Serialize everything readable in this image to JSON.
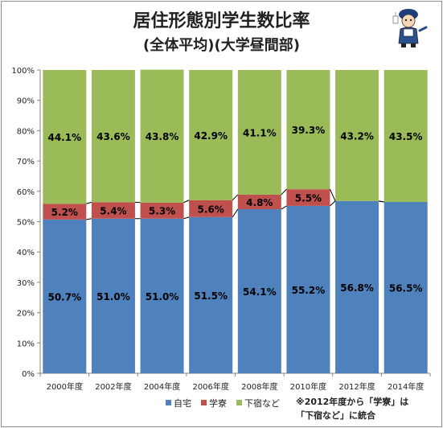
{
  "chart_data": {
    "type": "bar",
    "stacked": true,
    "title": "居住形態別学生数比率",
    "subtitle": "(全体平均)(大学昼間部)",
    "categories": [
      "2000年度",
      "2002年度",
      "2004年度",
      "2006年度",
      "2008年度",
      "2010年度",
      "2012年度",
      "2014年度"
    ],
    "series": [
      {
        "name": "自宅",
        "color": "#4f81bd",
        "values": [
          50.7,
          51.0,
          51.0,
          51.5,
          54.1,
          55.2,
          56.8,
          56.5
        ],
        "labels": [
          "50.7%",
          "51.0%",
          "51.0%",
          "51.5%",
          "54.1%",
          "55.2%",
          "56.8%",
          "56.5%"
        ]
      },
      {
        "name": "学寮",
        "color": "#c0504d",
        "values": [
          5.2,
          5.4,
          5.3,
          5.6,
          4.8,
          5.5,
          0,
          0
        ],
        "labels": [
          "5.2%",
          "5.4%",
          "5.3%",
          "5.6%",
          "4.8%",
          "5.5%",
          "",
          ""
        ]
      },
      {
        "name": "下宿など",
        "color": "#9bbb59",
        "values": [
          44.1,
          43.6,
          43.8,
          42.9,
          41.1,
          39.3,
          43.2,
          43.5
        ],
        "labels": [
          "44.1%",
          "43.6%",
          "43.8%",
          "42.9%",
          "41.1%",
          "39.3%",
          "43.2%",
          "43.5%"
        ]
      }
    ],
    "yticks": [
      "0%",
      "10%",
      "20%",
      "30%",
      "40%",
      "50%",
      "60%",
      "70%",
      "80%",
      "90%",
      "100%"
    ],
    "ylim": [
      0,
      100
    ],
    "legend_position": "bottom",
    "grid": false
  },
  "header": {
    "title": "居住形態別学生数比率",
    "subtitle": "(全体平均)(大学昼間部)"
  },
  "note": {
    "line1": "※2012年度から「学寮」は",
    "line2": "「下宿など」に統合"
  },
  "mascot_icon": "mascot-character-icon"
}
